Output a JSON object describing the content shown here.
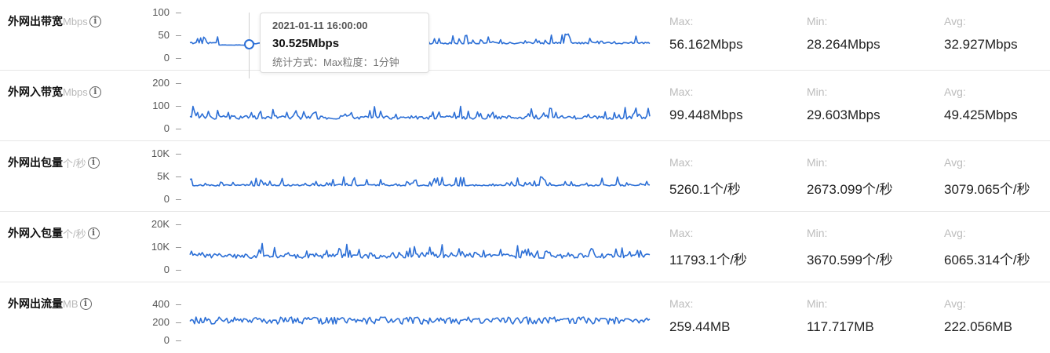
{
  "colors": {
    "series": "#2c6fd6",
    "muted": "#b9b9b9"
  },
  "tooltip": {
    "time": "2021-01-11 16:00:00",
    "value": "30.525Mbps",
    "note": "统计方式：Max粒度：1分钟"
  },
  "rows": [
    {
      "title": "外网出带宽",
      "unit": "Mbps",
      "ticks": [
        "100",
        "50",
        "0"
      ],
      "max_cap": "Max:",
      "max": "56.162Mbps",
      "min_cap": "Min:",
      "min": "28.264Mbps",
      "avg_cap": "Avg:",
      "avg": "32.927Mbps"
    },
    {
      "title": "外网入带宽",
      "unit": "Mbps",
      "ticks": [
        "200",
        "100",
        "0"
      ],
      "max_cap": "Max:",
      "max": "99.448Mbps",
      "min_cap": "Min:",
      "min": "29.603Mbps",
      "avg_cap": "Avg:",
      "avg": "49.425Mbps"
    },
    {
      "title": "外网出包量",
      "unit": "个/秒",
      "ticks": [
        "10K",
        "5K",
        "0"
      ],
      "max_cap": "Max:",
      "max": "5260.1个/秒",
      "min_cap": "Min:",
      "min": "2673.099个/秒",
      "avg_cap": "Avg:",
      "avg": "3079.065个/秒"
    },
    {
      "title": "外网入包量",
      "unit": "个/秒",
      "ticks": [
        "20K",
        "10K",
        "0"
      ],
      "max_cap": "Max:",
      "max": "11793.1个/秒",
      "min_cap": "Min:",
      "min": "3670.599个/秒",
      "avg_cap": "Avg:",
      "avg": "6065.314个/秒"
    },
    {
      "title": "外网出流量",
      "unit": "MB",
      "ticks": [
        "400",
        "200",
        "0"
      ],
      "max_cap": "Max:",
      "max": "259.44MB",
      "min_cap": "Min:",
      "min": "117.717MB",
      "avg_cap": "Avg:",
      "avg": "222.056MB"
    }
  ],
  "chart_data": [
    {
      "type": "line",
      "series": [
        {
          "values_range": [
            28.264,
            56.162
          ],
          "avg": 32.927
        }
      ],
      "ylim": [
        0,
        100
      ]
    },
    {
      "type": "line",
      "series": [
        {
          "values_range": [
            29.603,
            99.448
          ],
          "avg": 49.425
        }
      ],
      "ylim": [
        0,
        200
      ]
    },
    {
      "type": "line",
      "series": [
        {
          "values_range": [
            2673.099,
            5260.1
          ],
          "avg": 3079.065
        }
      ],
      "ylim": [
        0,
        10000
      ]
    },
    {
      "type": "line",
      "series": [
        {
          "values_range": [
            3670.599,
            11793.1
          ],
          "avg": 6065.314
        }
      ],
      "ylim": [
        0,
        20000
      ]
    },
    {
      "type": "line",
      "series": [
        {
          "values_range": [
            117.717,
            259.44
          ],
          "avg": 222.056
        }
      ],
      "ylim": [
        0,
        400
      ]
    }
  ]
}
